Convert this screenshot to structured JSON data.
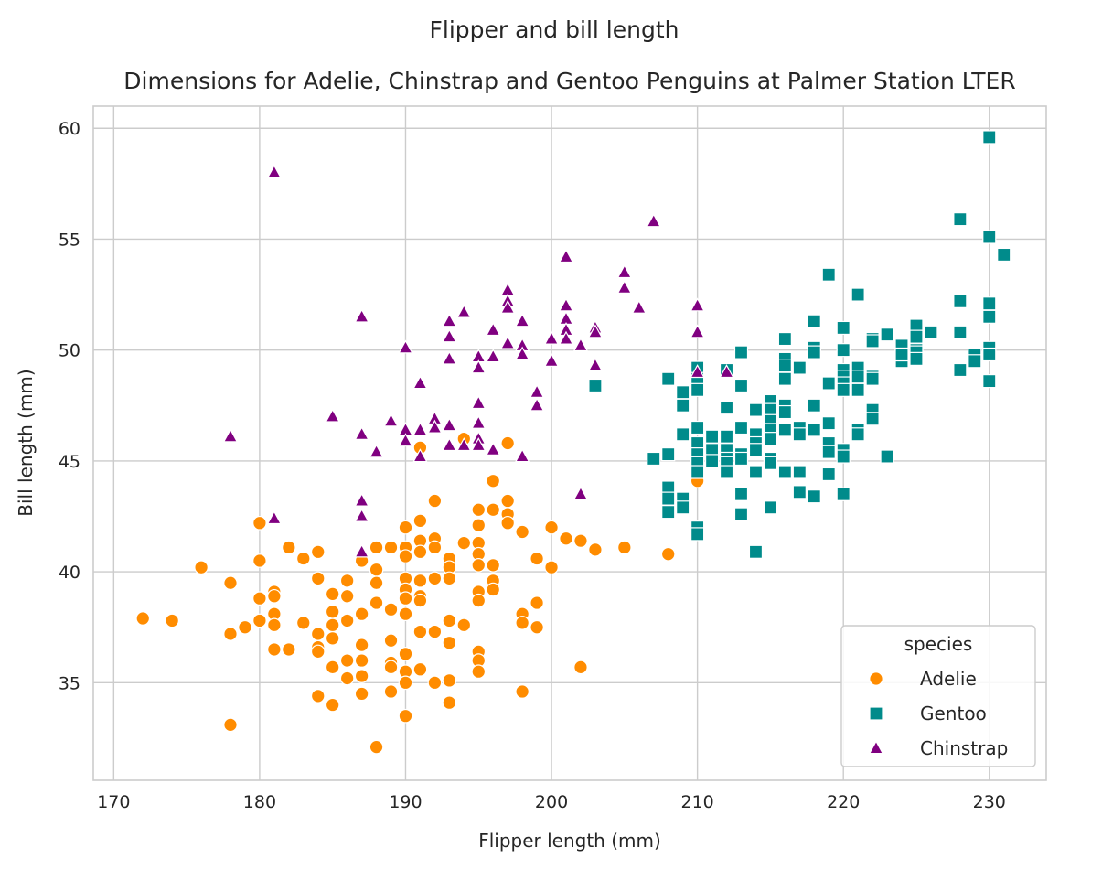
{
  "chart_data": {
    "type": "scatter",
    "suptitle": "Flipper and bill length",
    "title": "Dimensions for Adelie, Chinstrap and Gentoo Penguins at Palmer Station LTER",
    "xlabel": "Flipper length (mm)",
    "ylabel": "Bill length (mm)",
    "xlim": [
      168.6,
      233.9
    ],
    "ylim": [
      30.6,
      61.0
    ],
    "xticks": [
      170,
      180,
      190,
      200,
      210,
      220,
      230
    ],
    "yticks": [
      35,
      40,
      45,
      50,
      55,
      60
    ],
    "grid": true,
    "legend": {
      "title": "species",
      "placement": "bottom-right"
    },
    "series": [
      {
        "name": "Adelie",
        "color": "#ff8c00",
        "marker": "circle",
        "points": [
          [
            172,
            37.9
          ],
          [
            174,
            37.8
          ],
          [
            176,
            40.2
          ],
          [
            178,
            39.5
          ],
          [
            178,
            37.2
          ],
          [
            178,
            33.1
          ],
          [
            179,
            37.5
          ],
          [
            180,
            42.2
          ],
          [
            180,
            40.5
          ],
          [
            180,
            38.8
          ],
          [
            180,
            37.8
          ],
          [
            181,
            39.1
          ],
          [
            181,
            38.9
          ],
          [
            181,
            38.1
          ],
          [
            181,
            37.6
          ],
          [
            181,
            36.5
          ],
          [
            182,
            41.1
          ],
          [
            182,
            36.5
          ],
          [
            183,
            40.6
          ],
          [
            183,
            37.7
          ],
          [
            184,
            40.9
          ],
          [
            184,
            39.7
          ],
          [
            184,
            37.2
          ],
          [
            184,
            36.6
          ],
          [
            184,
            36.4
          ],
          [
            184,
            34.4
          ],
          [
            185,
            39.0
          ],
          [
            185,
            38.2
          ],
          [
            185,
            37.6
          ],
          [
            185,
            37.0
          ],
          [
            185,
            35.7
          ],
          [
            185,
            34.0
          ],
          [
            186,
            39.6
          ],
          [
            186,
            38.9
          ],
          [
            186,
            37.8
          ],
          [
            186,
            36.0
          ],
          [
            186,
            35.2
          ],
          [
            187,
            40.5
          ],
          [
            187,
            38.1
          ],
          [
            187,
            36.7
          ],
          [
            187,
            36.0
          ],
          [
            187,
            35.3
          ],
          [
            187,
            34.5
          ],
          [
            188,
            41.1
          ],
          [
            188,
            40.1
          ],
          [
            188,
            39.5
          ],
          [
            188,
            38.6
          ],
          [
            188,
            32.1
          ],
          [
            189,
            41.1
          ],
          [
            189,
            38.3
          ],
          [
            189,
            36.9
          ],
          [
            189,
            35.9
          ],
          [
            189,
            35.7
          ],
          [
            189,
            34.6
          ],
          [
            190,
            42.0
          ],
          [
            190,
            41.1
          ],
          [
            190,
            40.7
          ],
          [
            190,
            39.7
          ],
          [
            190,
            39.2
          ],
          [
            190,
            38.8
          ],
          [
            190,
            38.1
          ],
          [
            190,
            36.3
          ],
          [
            190,
            35.5
          ],
          [
            190,
            35.0
          ],
          [
            190,
            33.5
          ],
          [
            191,
            45.6
          ],
          [
            191,
            42.3
          ],
          [
            191,
            41.4
          ],
          [
            191,
            40.9
          ],
          [
            191,
            39.6
          ],
          [
            191,
            38.9
          ],
          [
            191,
            38.7
          ],
          [
            191,
            37.3
          ],
          [
            191,
            35.6
          ],
          [
            192,
            43.2
          ],
          [
            192,
            41.5
          ],
          [
            192,
            41.1
          ],
          [
            192,
            39.7
          ],
          [
            192,
            37.3
          ],
          [
            192,
            35.0
          ],
          [
            193,
            40.6
          ],
          [
            193,
            40.2
          ],
          [
            193,
            39.7
          ],
          [
            193,
            37.8
          ],
          [
            193,
            36.8
          ],
          [
            193,
            35.1
          ],
          [
            193,
            34.1
          ],
          [
            194,
            46.0
          ],
          [
            194,
            41.3
          ],
          [
            194,
            37.6
          ],
          [
            195,
            42.8
          ],
          [
            195,
            42.1
          ],
          [
            195,
            41.3
          ],
          [
            195,
            40.8
          ],
          [
            195,
            40.3
          ],
          [
            195,
            39.1
          ],
          [
            195,
            38.7
          ],
          [
            195,
            36.4
          ],
          [
            195,
            36.0
          ],
          [
            195,
            35.5
          ],
          [
            196,
            44.1
          ],
          [
            196,
            42.8
          ],
          [
            196,
            40.3
          ],
          [
            196,
            39.6
          ],
          [
            196,
            39.2
          ],
          [
            197,
            45.8
          ],
          [
            197,
            43.2
          ],
          [
            197,
            42.6
          ],
          [
            197,
            42.2
          ],
          [
            198,
            41.8
          ],
          [
            198,
            38.1
          ],
          [
            198,
            37.7
          ],
          [
            198,
            34.6
          ],
          [
            199,
            40.6
          ],
          [
            199,
            38.6
          ],
          [
            199,
            37.5
          ],
          [
            200,
            42.0
          ],
          [
            200,
            40.2
          ],
          [
            201,
            41.5
          ],
          [
            202,
            41.4
          ],
          [
            202,
            35.7
          ],
          [
            203,
            41.0
          ],
          [
            205,
            41.1
          ],
          [
            208,
            40.8
          ],
          [
            210,
            44.1
          ]
        ]
      },
      {
        "name": "Gentoo",
        "color": "#008b8b",
        "marker": "square",
        "points": [
          [
            203,
            48.4
          ],
          [
            207,
            45.1
          ],
          [
            208,
            48.7
          ],
          [
            208,
            45.3
          ],
          [
            208,
            43.8
          ],
          [
            208,
            43.3
          ],
          [
            208,
            42.7
          ],
          [
            209,
            48.1
          ],
          [
            209,
            47.5
          ],
          [
            209,
            46.2
          ],
          [
            209,
            43.3
          ],
          [
            209,
            42.9
          ],
          [
            210,
            49.2
          ],
          [
            210,
            48.7
          ],
          [
            210,
            48.2
          ],
          [
            210,
            46.5
          ],
          [
            210,
            45.8
          ],
          [
            210,
            45.3
          ],
          [
            210,
            44.9
          ],
          [
            210,
            44.5
          ],
          [
            210,
            42.0
          ],
          [
            210,
            41.7
          ],
          [
            211,
            46.1
          ],
          [
            211,
            45.5
          ],
          [
            211,
            45.0
          ],
          [
            212,
            49.1
          ],
          [
            212,
            47.4
          ],
          [
            212,
            46.1
          ],
          [
            212,
            45.5
          ],
          [
            212,
            45.1
          ],
          [
            212,
            44.9
          ],
          [
            212,
            44.5
          ],
          [
            213,
            49.9
          ],
          [
            213,
            48.4
          ],
          [
            213,
            46.5
          ],
          [
            213,
            45.3
          ],
          [
            213,
            45.1
          ],
          [
            213,
            43.5
          ],
          [
            213,
            42.6
          ],
          [
            214,
            47.3
          ],
          [
            214,
            46.2
          ],
          [
            214,
            45.8
          ],
          [
            214,
            45.5
          ],
          [
            214,
            44.5
          ],
          [
            214,
            40.9
          ],
          [
            215,
            47.7
          ],
          [
            215,
            47.3
          ],
          [
            215,
            46.8
          ],
          [
            215,
            46.4
          ],
          [
            215,
            46.0
          ],
          [
            215,
            45.1
          ],
          [
            215,
            44.9
          ],
          [
            215,
            42.9
          ],
          [
            216,
            50.5
          ],
          [
            216,
            49.6
          ],
          [
            216,
            49.3
          ],
          [
            216,
            48.7
          ],
          [
            216,
            47.5
          ],
          [
            216,
            47.2
          ],
          [
            216,
            46.4
          ],
          [
            216,
            44.5
          ],
          [
            217,
            49.2
          ],
          [
            217,
            46.5
          ],
          [
            217,
            46.2
          ],
          [
            217,
            44.5
          ],
          [
            217,
            43.6
          ],
          [
            218,
            51.3
          ],
          [
            218,
            50.1
          ],
          [
            218,
            49.9
          ],
          [
            218,
            47.5
          ],
          [
            218,
            46.4
          ],
          [
            218,
            43.4
          ],
          [
            219,
            53.4
          ],
          [
            219,
            48.5
          ],
          [
            219,
            46.7
          ],
          [
            219,
            45.8
          ],
          [
            219,
            45.4
          ],
          [
            219,
            44.4
          ],
          [
            220,
            51.0
          ],
          [
            220,
            50.0
          ],
          [
            220,
            49.1
          ],
          [
            220,
            48.8
          ],
          [
            220,
            48.5
          ],
          [
            220,
            48.2
          ],
          [
            220,
            45.5
          ],
          [
            220,
            45.2
          ],
          [
            220,
            43.5
          ],
          [
            221,
            52.5
          ],
          [
            221,
            49.2
          ],
          [
            221,
            48.8
          ],
          [
            221,
            48.2
          ],
          [
            221,
            46.4
          ],
          [
            221,
            46.2
          ],
          [
            222,
            50.5
          ],
          [
            222,
            50.4
          ],
          [
            222,
            48.8
          ],
          [
            222,
            48.7
          ],
          [
            222,
            47.3
          ],
          [
            222,
            46.9
          ],
          [
            223,
            50.7
          ],
          [
            223,
            45.2
          ],
          [
            224,
            50.2
          ],
          [
            224,
            49.8
          ],
          [
            224,
            49.5
          ],
          [
            224,
            49.8
          ],
          [
            225,
            51.1
          ],
          [
            225,
            50.6
          ],
          [
            225,
            50.0
          ],
          [
            225,
            49.9
          ],
          [
            225,
            49.6
          ],
          [
            226,
            50.8
          ],
          [
            228,
            55.9
          ],
          [
            228,
            52.2
          ],
          [
            228,
            50.8
          ],
          [
            228,
            49.1
          ],
          [
            229,
            49.8
          ],
          [
            229,
            49.5
          ],
          [
            230,
            59.6
          ],
          [
            230,
            55.1
          ],
          [
            230,
            52.1
          ],
          [
            230,
            51.5
          ],
          [
            230,
            50.1
          ],
          [
            230,
            49.8
          ],
          [
            230,
            48.6
          ],
          [
            231,
            54.3
          ]
        ]
      },
      {
        "name": "Chinstrap",
        "color": "#800080",
        "marker": "triangle",
        "points": [
          [
            178,
            46.1
          ],
          [
            181,
            58.0
          ],
          [
            181,
            42.4
          ],
          [
            185,
            47.0
          ],
          [
            187,
            51.5
          ],
          [
            187,
            46.2
          ],
          [
            187,
            43.2
          ],
          [
            187,
            42.5
          ],
          [
            187,
            40.9
          ],
          [
            188,
            45.4
          ],
          [
            189,
            46.8
          ],
          [
            190,
            50.1
          ],
          [
            190,
            46.4
          ],
          [
            190,
            45.9
          ],
          [
            191,
            48.5
          ],
          [
            191,
            46.4
          ],
          [
            191,
            45.2
          ],
          [
            192,
            46.9
          ],
          [
            192,
            46.5
          ],
          [
            193,
            51.3
          ],
          [
            193,
            50.6
          ],
          [
            193,
            49.6
          ],
          [
            193,
            46.6
          ],
          [
            193,
            45.7
          ],
          [
            194,
            51.7
          ],
          [
            194,
            45.7
          ],
          [
            195,
            49.7
          ],
          [
            195,
            49.2
          ],
          [
            195,
            47.6
          ],
          [
            195,
            46.7
          ],
          [
            195,
            46.0
          ],
          [
            195,
            45.7
          ],
          [
            196,
            50.9
          ],
          [
            196,
            49.7
          ],
          [
            196,
            45.5
          ],
          [
            197,
            52.7
          ],
          [
            197,
            52.2
          ],
          [
            197,
            51.9
          ],
          [
            197,
            50.3
          ],
          [
            198,
            51.3
          ],
          [
            198,
            50.2
          ],
          [
            198,
            49.8
          ],
          [
            198,
            45.2
          ],
          [
            199,
            48.1
          ],
          [
            199,
            47.5
          ],
          [
            200,
            50.5
          ],
          [
            200,
            49.5
          ],
          [
            201,
            54.2
          ],
          [
            201,
            52.0
          ],
          [
            201,
            51.4
          ],
          [
            201,
            50.9
          ],
          [
            201,
            50.5
          ],
          [
            202,
            50.2
          ],
          [
            202,
            43.5
          ],
          [
            203,
            51.0
          ],
          [
            203,
            50.8
          ],
          [
            203,
            49.3
          ],
          [
            205,
            53.5
          ],
          [
            205,
            52.8
          ],
          [
            206,
            51.9
          ],
          [
            207,
            55.8
          ],
          [
            210,
            52.0
          ],
          [
            210,
            50.8
          ],
          [
            210,
            49.0
          ],
          [
            212,
            49.0
          ]
        ]
      }
    ]
  }
}
